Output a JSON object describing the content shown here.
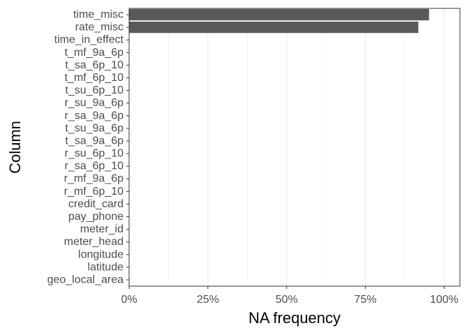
{
  "chart_data": {
    "type": "bar",
    "orientation": "horizontal",
    "categories": [
      "time_misc",
      "rate_misc",
      "time_in_effect",
      "t_mf_9a_6p",
      "t_sa_6p_10",
      "t_mf_6p_10",
      "t_su_6p_10",
      "r_su_9a_6p",
      "r_sa_9a_6p",
      "t_su_9a_6p",
      "t_sa_9a_6p",
      "r_su_6p_10",
      "r_sa_6p_10",
      "r_mf_9a_6p",
      "r_mf_6p_10",
      "credit_card",
      "pay_phone",
      "meter_id",
      "meter_head",
      "longitude",
      "latitude",
      "geo_local_area"
    ],
    "values": [
      0.952,
      0.918,
      0.001,
      0.001,
      0.001,
      0.001,
      0.001,
      0.001,
      0.001,
      0.001,
      0.001,
      0.001,
      0.001,
      0.001,
      0.001,
      0.0,
      0.0,
      0.0,
      0.0,
      0.0,
      0.0,
      0.0
    ],
    "xlabel": "NA frequency",
    "ylabel": "Column",
    "xlim": [
      0,
      1.05
    ],
    "xticks": [
      0,
      0.25,
      0.5,
      0.75,
      1.0
    ],
    "xtick_labels": [
      "0%",
      "25%",
      "50%",
      "75%",
      "100%"
    ],
    "grid": true,
    "bar_color": "#595959",
    "grid_color": "#ebebeb",
    "panel_border_color": "#333333"
  }
}
